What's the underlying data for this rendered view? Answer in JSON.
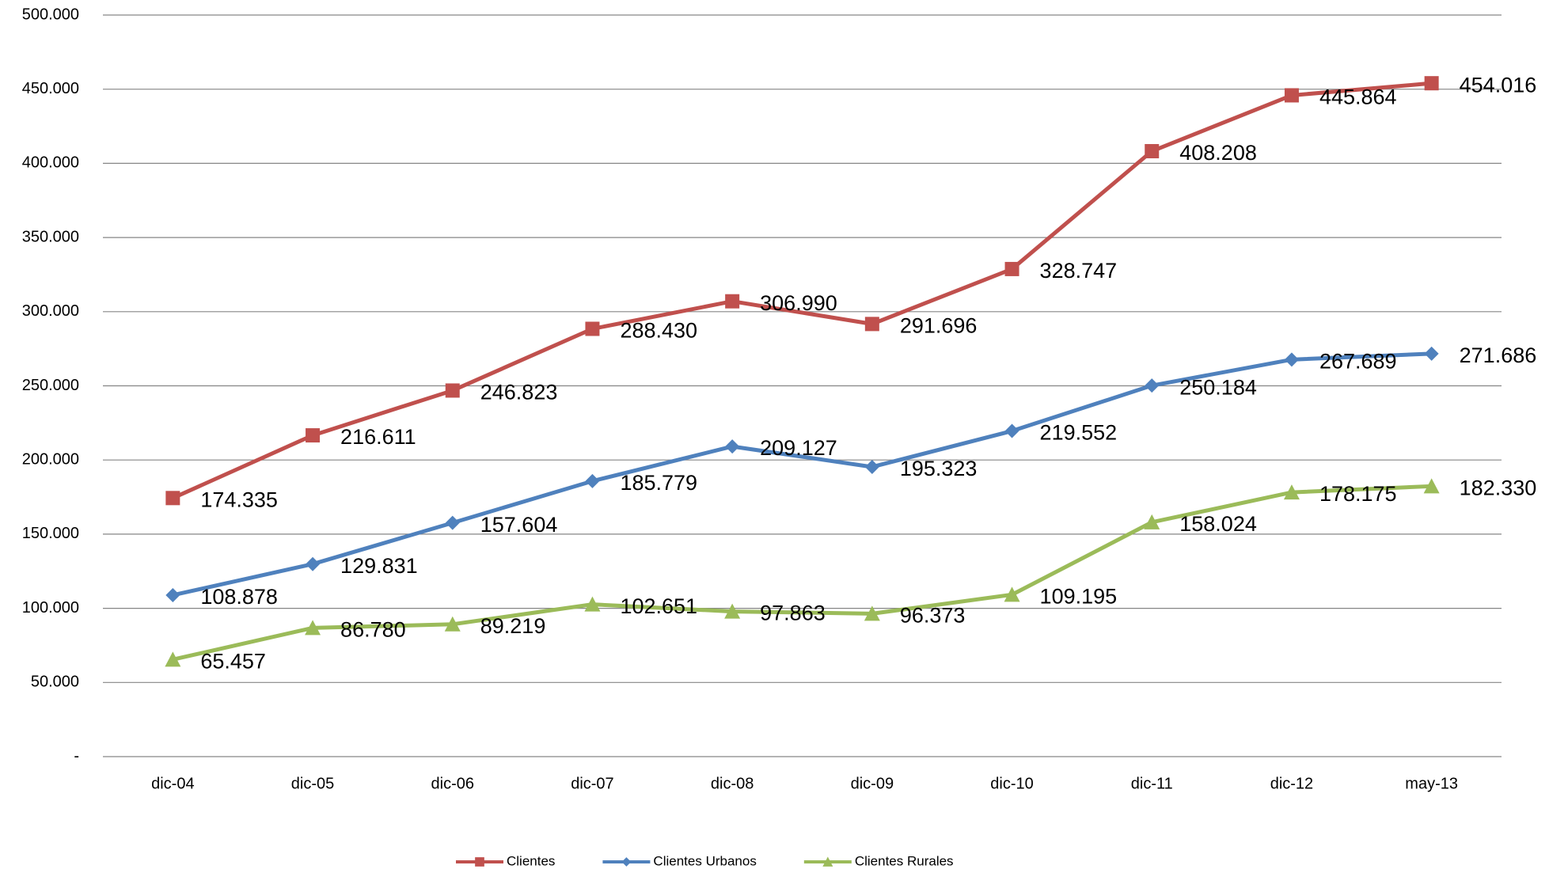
{
  "chart_data": {
    "type": "line",
    "categories": [
      "dic-04",
      "dic-05",
      "dic-06",
      "dic-07",
      "dic-08",
      "dic-09",
      "dic-10",
      "dic-11",
      "dic-12",
      "may-13"
    ],
    "ylim": [
      0,
      500000
    ],
    "yticks": [
      {
        "value": 0,
        "label": "-"
      },
      {
        "value": 50000,
        "label": "50.000"
      },
      {
        "value": 100000,
        "label": "100.000"
      },
      {
        "value": 150000,
        "label": "150.000"
      },
      {
        "value": 200000,
        "label": "200.000"
      },
      {
        "value": 250000,
        "label": "250.000"
      },
      {
        "value": 300000,
        "label": "300.000"
      },
      {
        "value": 350000,
        "label": "350.000"
      },
      {
        "value": 400000,
        "label": "400.000"
      },
      {
        "value": 450000,
        "label": "450.000"
      },
      {
        "value": 500000,
        "label": "500.000"
      }
    ],
    "grid": true,
    "legend": "bottom",
    "series": [
      {
        "name": "Clientes",
        "color": "#c0504d",
        "marker": "square",
        "values": [
          174335,
          216611,
          246823,
          288430,
          306990,
          291696,
          328747,
          408208,
          445864,
          454016
        ],
        "value_labels": [
          "174.335",
          "216.611",
          "246.823",
          "288.430",
          "306.990",
          "291.696",
          "328.747",
          "408.208",
          "445.864",
          "454.016"
        ]
      },
      {
        "name": "Clientes Urbanos",
        "color": "#4f81bd",
        "marker": "diamond",
        "values": [
          108878,
          129831,
          157604,
          185779,
          209127,
          195323,
          219552,
          250184,
          267689,
          271686
        ],
        "value_labels": [
          "108.878",
          "129.831",
          "157.604",
          "185.779",
          "209.127",
          "195.323",
          "219.552",
          "250.184",
          "267.689",
          "271.686"
        ]
      },
      {
        "name": "Clientes Rurales",
        "color": "#9bbb59",
        "marker": "triangle",
        "values": [
          65457,
          86780,
          89219,
          102651,
          97863,
          96373,
          109195,
          158024,
          178175,
          182330
        ],
        "value_labels": [
          "65.457",
          "86.780",
          "89.219",
          "102.651",
          "97.863",
          "96.373",
          "109.195",
          "158.024",
          "178.175",
          "182.330"
        ]
      }
    ]
  }
}
